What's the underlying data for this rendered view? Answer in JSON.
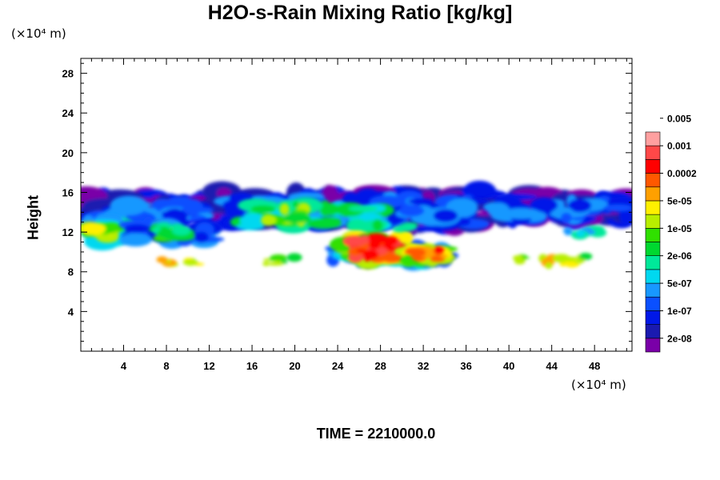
{
  "chart_data": {
    "type": "heatmap",
    "title": "H2O-s-Rain Mixing Ratio [kg/kg]",
    "ylabel": "Height",
    "xlabel": "",
    "x_unit_label": "(×10⁴ m)",
    "y_unit_label": "(×10⁴ m)",
    "footer": "TIME = 2210000.0",
    "xlim": [
      0,
      51.5
    ],
    "ylim": [
      0,
      29.5
    ],
    "x_ticks": [
      4,
      8,
      12,
      16,
      20,
      24,
      28,
      32,
      36,
      40,
      44,
      48
    ],
    "y_ticks": [
      4,
      8,
      12,
      16,
      20,
      24,
      28
    ],
    "grid": false,
    "legend_placement": "right",
    "colorbar": {
      "colors": [
        "#7a00a8",
        "#1a1ab0",
        "#0018e8",
        "#0a50ff",
        "#1898ff",
        "#00d8f0",
        "#00e89a",
        "#00d830",
        "#30e000",
        "#b8ee00",
        "#fff000",
        "#ffa000",
        "#ff5800",
        "#ff0000",
        "#ff4848",
        "#ffa0a0"
      ],
      "labels": [
        "2e-08",
        "1e-07",
        "5e-07",
        "2e-06",
        "1e-05",
        "5e-05",
        "0.0002",
        "0.001",
        "0.005"
      ]
    },
    "regions": [
      {
        "desc": "upper layer left",
        "x": [
          0,
          12
        ],
        "y": [
          12.8,
          15.8
        ],
        "level": 2
      },
      {
        "desc": "upper layer center",
        "x": [
          13,
          38
        ],
        "y": [
          12.2,
          16.5
        ],
        "level": 3
      },
      {
        "desc": "upper layer right",
        "x": [
          38,
          51.5
        ],
        "y": [
          13,
          16
        ],
        "level": 2
      },
      {
        "desc": "left convective blob",
        "x": [
          0.2,
          4
        ],
        "y": [
          10.8,
          13.2
        ],
        "level": 8
      },
      {
        "desc": "mid-left cloud",
        "x": [
          5,
          12
        ],
        "y": [
          10.8,
          13
        ],
        "level": 6
      },
      {
        "desc": "central rain maximum",
        "x": [
          25,
          30
        ],
        "y": [
          8.8,
          11.8
        ],
        "level": 13
      },
      {
        "desc": "secondary rain core",
        "x": [
          30.5,
          34
        ],
        "y": [
          8.8,
          10.8
        ],
        "level": 11
      },
      {
        "desc": "low rain band",
        "x": [
          23,
          34
        ],
        "y": [
          8.6,
          10.4
        ],
        "level": 8
      },
      {
        "desc": "right patch",
        "x": [
          43,
          46
        ],
        "y": [
          8.6,
          9.4
        ],
        "level": 10
      }
    ]
  }
}
